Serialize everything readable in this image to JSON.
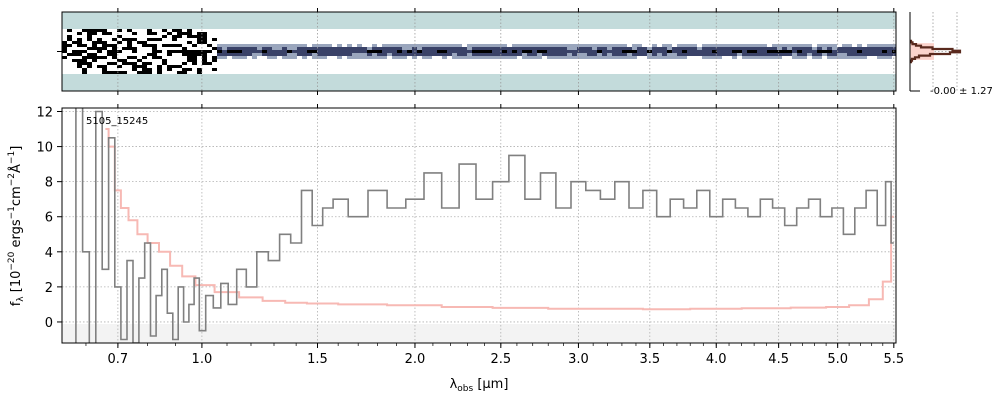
{
  "chart_data": [
    {
      "type": "heatmap",
      "panel": "2d-spectrum",
      "background_color": "#c3dbdb",
      "colormap": [
        "#ffffff",
        "#9aa6bd",
        "#3a4268",
        "#000000"
      ],
      "x_range": [
        0.53,
        5.52
      ],
      "y_range": [
        -12,
        12
      ],
      "trace_center": 0,
      "trace_width": 1.27
    },
    {
      "type": "line",
      "panel": "spatial-profile",
      "profile_color": "#5a2a1e",
      "fill_color": "#fbd3cc",
      "annotation": "-0.00 ± 1.27",
      "profile": [
        {
          "y": -6,
          "v": 0.02
        },
        {
          "y": -5,
          "v": 0.05
        },
        {
          "y": -4,
          "v": 0.12
        },
        {
          "y": -3,
          "v": 0.22
        },
        {
          "y": -2,
          "v": 0.45
        },
        {
          "y": -1,
          "v": 0.85
        },
        {
          "y": 0,
          "v": 1.0
        },
        {
          "y": 1,
          "v": 0.8
        },
        {
          "y": 2,
          "v": 0.4
        },
        {
          "y": 3,
          "v": 0.18
        },
        {
          "y": 4,
          "v": 0.1
        },
        {
          "y": 5,
          "v": 0.04
        },
        {
          "y": 6,
          "v": 0.02
        }
      ]
    },
    {
      "type": "line",
      "panel": "1d-spectrum",
      "title": "5105_15245",
      "xlabel": "λobs [μm]",
      "ylabel": "fλ [10−20 ergs−1cm−2Å−1]",
      "xlim": [
        0.53,
        5.52
      ],
      "ylim": [
        -1.2,
        12.2
      ],
      "x_scale": "sqrt",
      "grid": true,
      "x_ticks": [
        0.7,
        1.0,
        1.5,
        2.0,
        2.5,
        3.0,
        3.5,
        4.0,
        4.5,
        5.0,
        5.5
      ],
      "x_tick_labels": [
        "0.7",
        "1.0",
        "1.5",
        "2.0",
        "2.5",
        "3.0",
        "3.5",
        "4.0",
        "4.5",
        "5.0",
        "5.5"
      ],
      "y_ticks": [
        0,
        2,
        4,
        6,
        8,
        10,
        12
      ],
      "y_tick_labels": [
        "0",
        "2",
        "4",
        "6",
        "8",
        "10",
        "12"
      ],
      "series": [
        {
          "role": "flux",
          "color": "#808080",
          "x": [
            0.56,
            0.58,
            0.6,
            0.62,
            0.64,
            0.66,
            0.68,
            0.7,
            0.72,
            0.74,
            0.76,
            0.78,
            0.8,
            0.82,
            0.84,
            0.86,
            0.88,
            0.9,
            0.92,
            0.94,
            0.96,
            0.98,
            1.0,
            1.03,
            1.06,
            1.09,
            1.12,
            1.16,
            1.2,
            1.25,
            1.3,
            1.35,
            1.4,
            1.45,
            1.5,
            1.55,
            1.6,
            1.7,
            1.8,
            1.9,
            2.0,
            2.1,
            2.2,
            2.3,
            2.4,
            2.5,
            2.6,
            2.7,
            2.8,
            2.9,
            3.0,
            3.1,
            3.2,
            3.3,
            3.4,
            3.5,
            3.6,
            3.7,
            3.8,
            3.9,
            4.0,
            4.1,
            4.2,
            4.3,
            4.4,
            4.5,
            4.6,
            4.7,
            4.8,
            4.9,
            5.0,
            5.1,
            5.2,
            5.3,
            5.4,
            5.45,
            5.5
          ],
          "y": [
            -2.0,
            12.5,
            4.0,
            -1.5,
            12.0,
            3.0,
            10.5,
            2.0,
            -1.0,
            3.5,
            -1.2,
            2.5,
            4.5,
            -0.8,
            1.5,
            3.0,
            0.5,
            -1.0,
            2.0,
            0.0,
            1.0,
            2.5,
            -0.5,
            1.5,
            0.8,
            2.2,
            1.0,
            3.0,
            2.0,
            4.0,
            3.5,
            5.0,
            4.5,
            7.5,
            5.5,
            6.5,
            7.0,
            6.0,
            7.5,
            6.5,
            7.0,
            8.5,
            6.5,
            9.0,
            7.0,
            8.0,
            9.5,
            7.0,
            8.5,
            6.5,
            8.0,
            7.5,
            7.0,
            8.0,
            6.5,
            7.5,
            6.0,
            7.0,
            6.5,
            7.5,
            6.0,
            7.0,
            6.5,
            6.0,
            7.0,
            6.5,
            5.5,
            6.5,
            7.0,
            6.0,
            6.5,
            5.0,
            6.5,
            7.5,
            5.5,
            8.0,
            4.5
          ]
        },
        {
          "role": "uncertainty",
          "color": "#f7b9b4",
          "x": [
            0.66,
            0.68,
            0.7,
            0.72,
            0.75,
            0.78,
            0.82,
            0.86,
            0.9,
            0.95,
            1.0,
            1.1,
            1.2,
            1.3,
            1.4,
            1.5,
            1.7,
            2.0,
            2.3,
            2.6,
            3.0,
            3.3,
            3.6,
            4.0,
            4.4,
            4.8,
            5.0,
            5.2,
            5.35,
            5.45,
            5.5
          ],
          "y": [
            11.0,
            10.0,
            7.5,
            6.5,
            5.8,
            5.0,
            4.5,
            4.0,
            3.2,
            2.6,
            2.1,
            1.7,
            1.4,
            1.2,
            1.1,
            1.05,
            1.0,
            0.95,
            0.85,
            0.8,
            0.75,
            0.75,
            0.72,
            0.75,
            0.78,
            0.82,
            0.85,
            0.95,
            1.3,
            2.3,
            6.0
          ]
        }
      ]
    }
  ]
}
